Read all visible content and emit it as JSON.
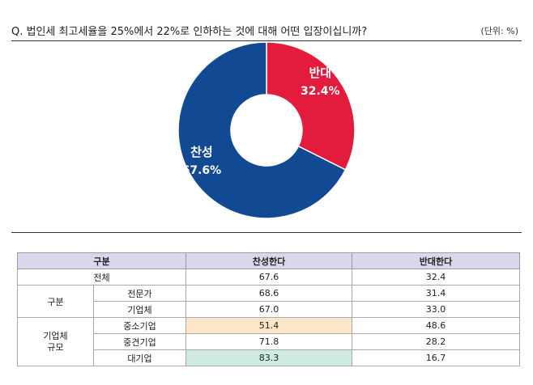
{
  "question": "Q. 법인세 최고세율을 25%에서 22%로 인하하는 것에 대해 어떤 입장이십니까?",
  "unit": "(단위: %)",
  "colors": {
    "oppose": "#e31c3d",
    "agree": "#114a93",
    "header_bg": "#d9d7ea",
    "highlight_orange": "#fde5c8",
    "highlight_teal": "#cdeae3"
  },
  "chart_data": [
    {
      "type": "pie",
      "donut": true,
      "slices": [
        {
          "name": "반대",
          "value": 32.4,
          "label": "32.4%"
        },
        {
          "name": "찬성",
          "value": 67.6,
          "label": "67.6%"
        }
      ]
    },
    {
      "type": "table",
      "columns": [
        "구분",
        "찬성한다",
        "반대한다"
      ],
      "rows": [
        {
          "group": "",
          "label": "전체",
          "agree": "67.6",
          "oppose": "32.4"
        },
        {
          "group": "구분",
          "label": "전문가",
          "agree": "68.6",
          "oppose": "31.4"
        },
        {
          "group": "구분",
          "label": "기업체",
          "agree": "67.0",
          "oppose": "33.0"
        },
        {
          "group": "기업체 규모",
          "label": "중소기업",
          "agree": "51.4",
          "oppose": "48.6"
        },
        {
          "group": "기업체 규모",
          "label": "중견기업",
          "agree": "71.8",
          "oppose": "28.2"
        },
        {
          "group": "기업체 규모",
          "label": "대기업",
          "agree": "83.3",
          "oppose": "16.7"
        }
      ]
    }
  ],
  "table_groups": {
    "g1": "구분",
    "g2_line1": "기업체",
    "g2_line2": "규모"
  }
}
